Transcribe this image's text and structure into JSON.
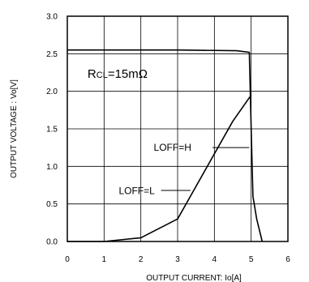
{
  "chart_data": {
    "type": "line",
    "xlabel": "OUTPUT CURRENT: Io[A]",
    "ylabel": "OUTPUT VOLTAGE : Vo[V]",
    "xlim": [
      0,
      6
    ],
    "ylim": [
      0,
      3
    ],
    "x_ticks": [
      0,
      1,
      2,
      3,
      4,
      5,
      6
    ],
    "y_ticks": [
      "0.0",
      "0.5",
      "1.0",
      "1.5",
      "2.0",
      "2.5",
      "3.0"
    ],
    "grid": true,
    "series": [
      {
        "name": "LOFF=H",
        "x": [
          0,
          3.0,
          4.6,
          4.95,
          5.0,
          5.05,
          5.15,
          5.3
        ],
        "y": [
          2.55,
          2.55,
          2.54,
          2.52,
          1.5,
          0.6,
          0.3,
          0.0
        ]
      },
      {
        "name": "LOFF=L",
        "x": [
          0,
          1.0,
          2.0,
          3.0,
          4.5,
          5.0
        ],
        "y": [
          0.0,
          0.0,
          0.05,
          0.3,
          1.6,
          1.95
        ]
      }
    ],
    "annotations": {
      "rcl_main": "R",
      "rcl_sub": "CL",
      "rcl_value": "=15mΩ",
      "loff_h": "LOFF=H",
      "loff_l": "LOFF=L"
    }
  }
}
